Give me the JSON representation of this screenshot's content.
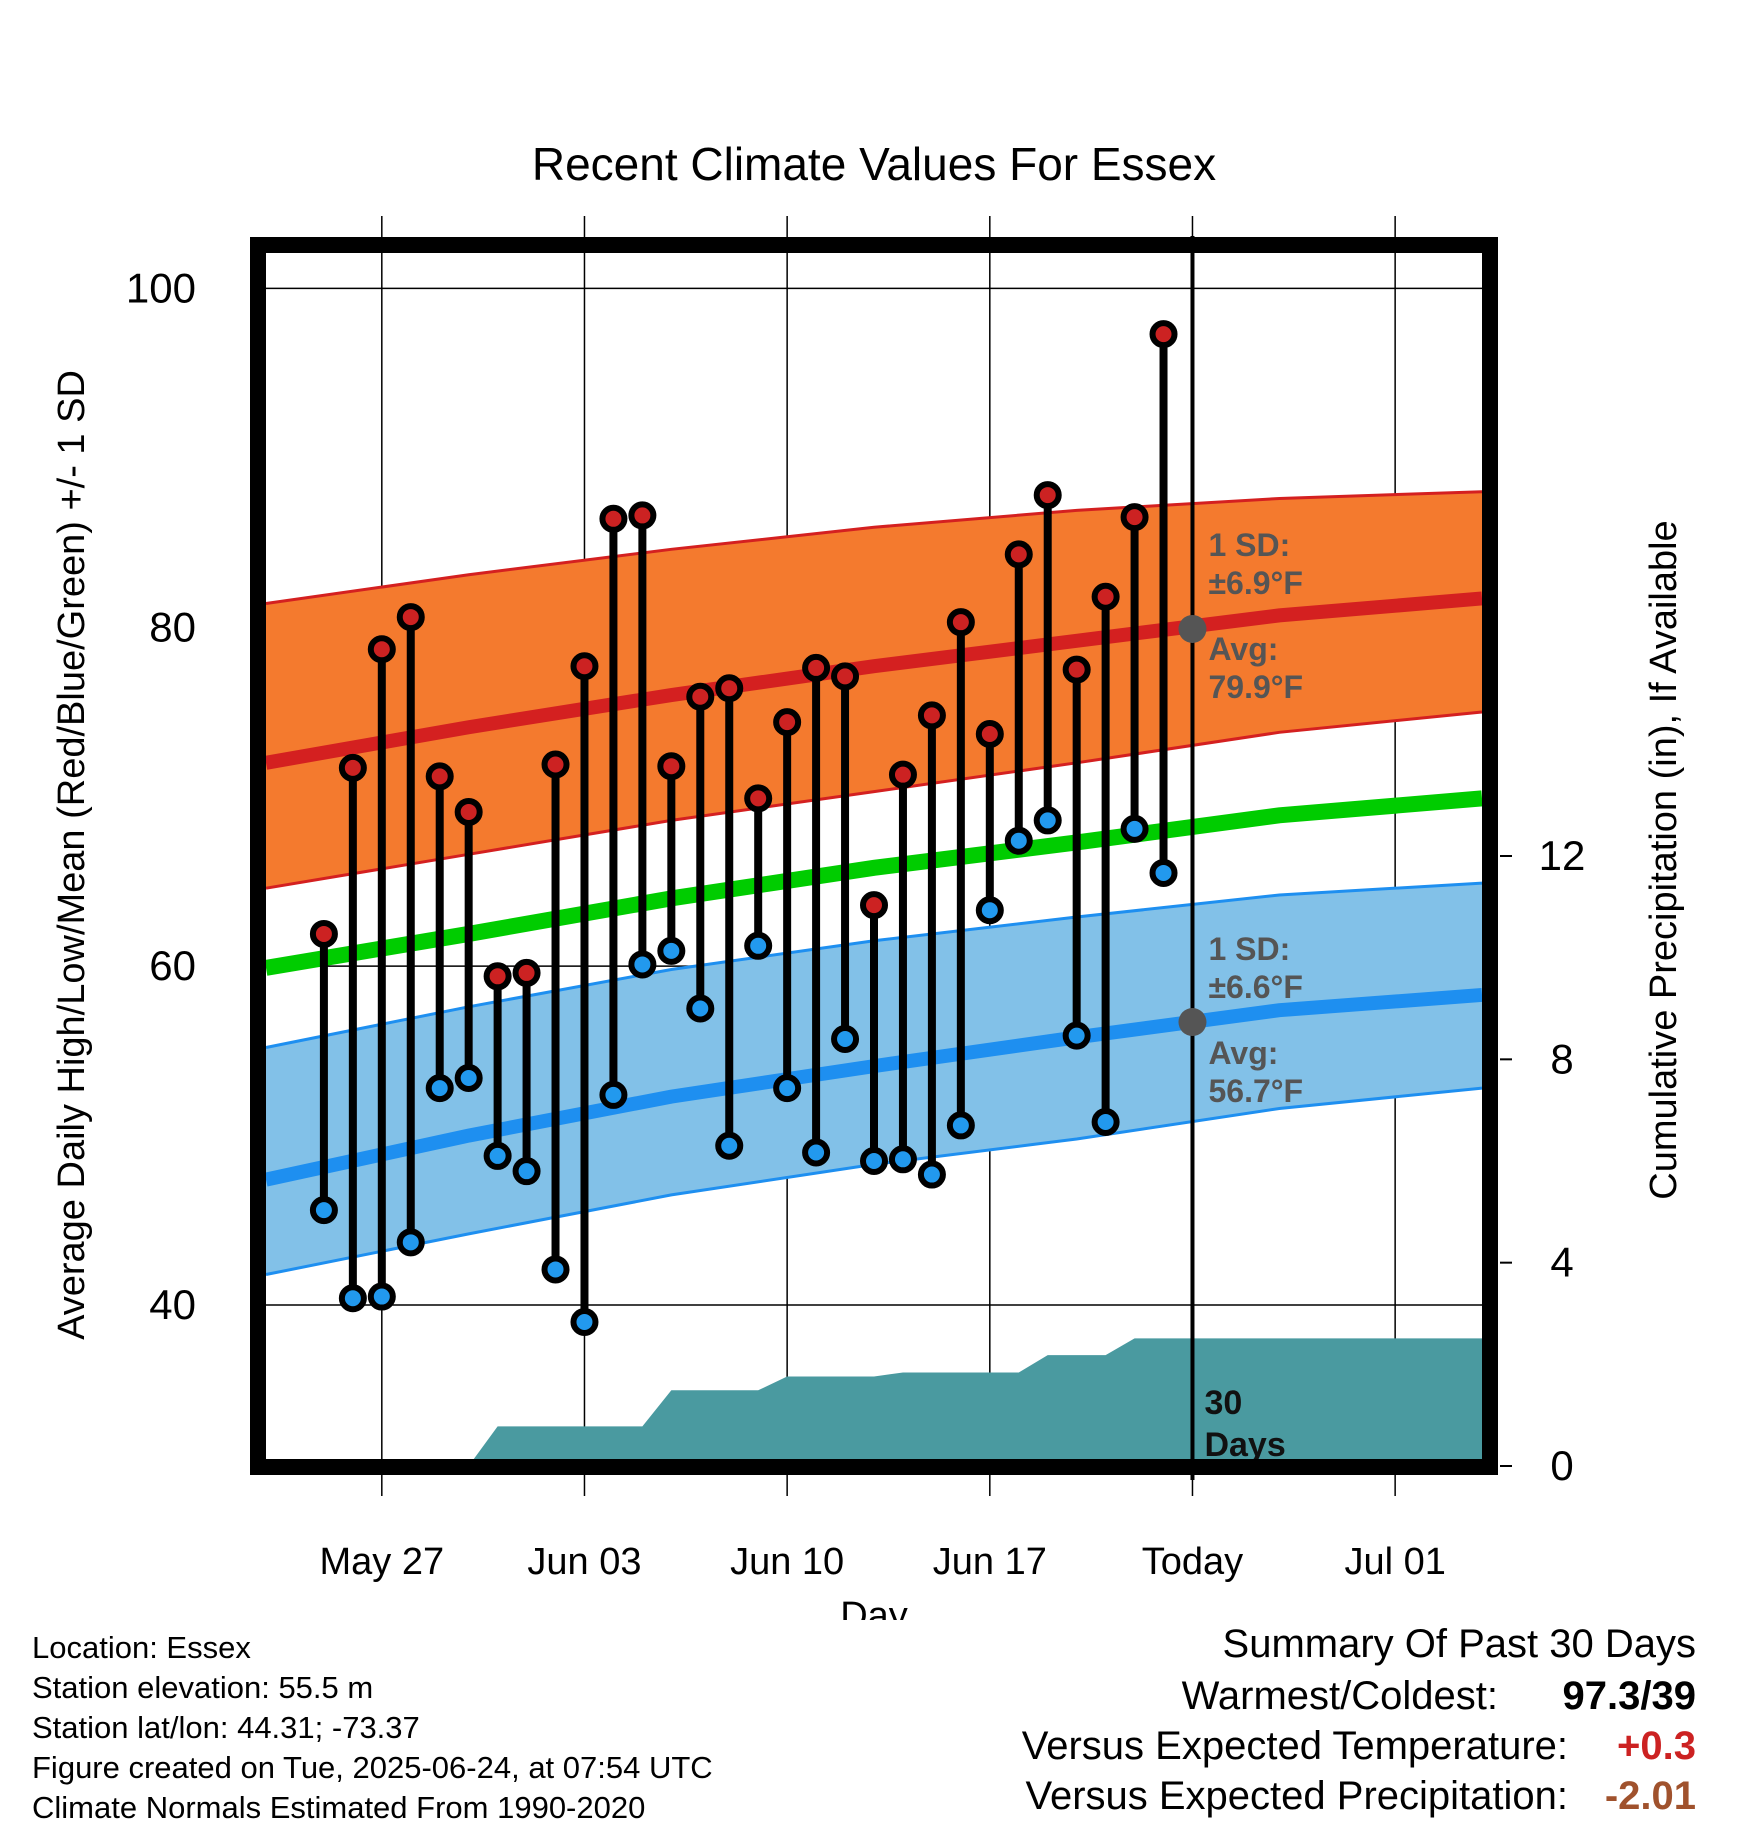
{
  "chart_data": {
    "type": "line",
    "title": "Recent Climate Values For Essex",
    "xlabel": "Day",
    "ylabel_left": "Average Daily High/Low/Mean (Red/Blue/Green) +/- 1 SD",
    "ylabel_right": "Cumulative Precipitation (in), If Available",
    "x_tick_labels": [
      "May 27",
      "Jun 03",
      "Jun 10",
      "Jun 17",
      "Today",
      "Jul 01"
    ],
    "x_tick_dates": [
      "2025-05-27",
      "2025-06-03",
      "2025-06-10",
      "2025-06-17",
      "2025-06-24",
      "2025-07-01"
    ],
    "xlim": [
      "2025-05-23",
      "2025-07-04"
    ],
    "ylim_left": [
      30.5,
      102.5
    ],
    "yticks_left": [
      40,
      60,
      80,
      100
    ],
    "ylim_right": [
      0,
      24
    ],
    "yticks_right": [
      0,
      4,
      8,
      12
    ],
    "grid": true,
    "today": "2025-06-24",
    "daily": {
      "dates": [
        "2025-05-25",
        "2025-05-26",
        "2025-05-27",
        "2025-05-28",
        "2025-05-29",
        "2025-05-30",
        "2025-05-31",
        "2025-06-01",
        "2025-06-02",
        "2025-06-03",
        "2025-06-04",
        "2025-06-05",
        "2025-06-06",
        "2025-06-07",
        "2025-06-08",
        "2025-06-09",
        "2025-06-10",
        "2025-06-11",
        "2025-06-12",
        "2025-06-13",
        "2025-06-14",
        "2025-06-15",
        "2025-06-16",
        "2025-06-17",
        "2025-06-18",
        "2025-06-19",
        "2025-06-20",
        "2025-06-21",
        "2025-06-22",
        "2025-06-23"
      ],
      "high": [
        61.9,
        71.7,
        78.7,
        80.6,
        71.2,
        69.1,
        59.4,
        59.6,
        71.9,
        77.7,
        86.4,
        86.6,
        71.8,
        75.9,
        76.4,
        69.9,
        74.4,
        77.6,
        77.1,
        63.6,
        71.3,
        74.8,
        80.3,
        73.7,
        84.3,
        87.8,
        77.5,
        81.8,
        86.5,
        97.3
      ],
      "low": [
        45.6,
        40.4,
        40.5,
        43.7,
        52.8,
        53.4,
        48.8,
        47.9,
        42.1,
        39.0,
        52.4,
        60.1,
        60.9,
        57.5,
        49.4,
        61.2,
        52.8,
        49.0,
        55.7,
        48.5,
        48.6,
        47.7,
        50.6,
        63.3,
        67.4,
        68.6,
        55.9,
        50.8,
        68.1,
        65.5
      ]
    },
    "normals": {
      "dates": [
        "2025-05-23",
        "2025-05-30",
        "2025-06-06",
        "2025-06-13",
        "2025-06-20",
        "2025-06-27",
        "2025-07-04"
      ],
      "high_avg": [
        72.0,
        74.1,
        76.0,
        77.7,
        79.2,
        80.7,
        81.7
      ],
      "high_upper": [
        81.4,
        83.1,
        84.6,
        85.9,
        86.9,
        87.6,
        88.0
      ],
      "high_lower": [
        64.6,
        66.6,
        68.6,
        70.3,
        72.0,
        73.8,
        75.0
      ],
      "low_avg": [
        47.4,
        50.0,
        52.3,
        54.1,
        55.8,
        57.4,
        58.3
      ],
      "low_upper": [
        55.2,
        57.6,
        59.8,
        61.5,
        62.9,
        64.2,
        64.9
      ],
      "low_lower": [
        41.8,
        44.2,
        46.5,
        48.3,
        49.8,
        51.6,
        52.8
      ],
      "mean_avg": [
        59.9,
        61.9,
        64.0,
        65.8,
        67.3,
        68.9,
        69.9
      ]
    },
    "precip": {
      "dates": [
        "2025-05-23",
        "2025-05-30",
        "2025-05-31",
        "2025-06-05",
        "2025-06-06",
        "2025-06-09",
        "2025-06-10",
        "2025-06-13",
        "2025-06-14",
        "2025-06-18",
        "2025-06-19",
        "2025-06-21",
        "2025-06-22",
        "2025-07-04"
      ],
      "cumulative": [
        0,
        0,
        0.78,
        0.78,
        1.49,
        1.49,
        1.76,
        1.76,
        1.84,
        1.84,
        2.18,
        2.18,
        2.51,
        2.51
      ]
    },
    "annotations": {
      "high_sd_label": "1 SD:",
      "high_sd_value": "±6.9°F",
      "high_avg_label": "Avg:",
      "high_avg_value": "79.9°F",
      "high_avg_today": 79.9,
      "low_sd_label": "1 SD:",
      "low_sd_value": "±6.6°F",
      "low_avg_label": "Avg:",
      "low_avg_value": "56.7°F",
      "low_avg_today": 56.7,
      "precip_label_1": "30",
      "precip_label_2": "Days"
    },
    "colors": {
      "high_band": "#f47a2e",
      "high_line": "#d42020",
      "low_band": "#82c1e8",
      "low_line": "#1e8ff0",
      "mean_line": "#00cc00",
      "precip": "#4a9aa0",
      "high_dot": "#cc2222",
      "low_dot": "#2299ee",
      "annotation": "#555555"
    }
  },
  "footer": {
    "location": "Location: Essex",
    "elevation": "Station elevation: 55.5 m",
    "latlon": "Station lat/lon: 44.31; -73.37",
    "created": "Figure created on Tue, 2025-06-24, at 07:54 UTC",
    "normals": "Climate Normals Estimated From 1990-2020"
  },
  "summary": {
    "title": "Summary Of Past 30 Days",
    "warmest_label": "Warmest/Coldest:",
    "warmest_value": "97.3/39",
    "temp_label": "Versus Expected Temperature:",
    "temp_value": "+0.3",
    "temp_color": "#cc2222",
    "precip_label": "Versus Expected Precipitation:",
    "precip_value": "-2.01",
    "precip_color": "#a0522d"
  }
}
